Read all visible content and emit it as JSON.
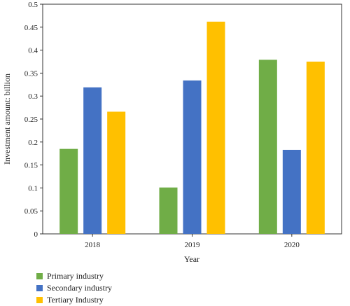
{
  "chart_data": {
    "type": "bar",
    "categories": [
      "2018",
      "2019",
      "2020"
    ],
    "series": [
      {
        "name": "Primary industry",
        "color": "#70ad47",
        "values": [
          0.185,
          0.101,
          0.379
        ]
      },
      {
        "name": "Secondary industry",
        "color": "#4472c4",
        "values": [
          0.319,
          0.334,
          0.183
        ]
      },
      {
        "name": "Tertiary Industry",
        "color": "#ffc000",
        "values": [
          0.266,
          0.462,
          0.375
        ]
      }
    ],
    "xlabel": "Year",
    "ylabel": "Investment amount: billion",
    "ylim": [
      0,
      0.5
    ],
    "yticks": [
      "0",
      "0.05",
      "0.1",
      "0.15",
      "0.2",
      "0.25",
      "0.3",
      "0.35",
      "0.4",
      "0.45",
      "0.5"
    ],
    "grid": false,
    "legend_position": "bottom-left"
  }
}
